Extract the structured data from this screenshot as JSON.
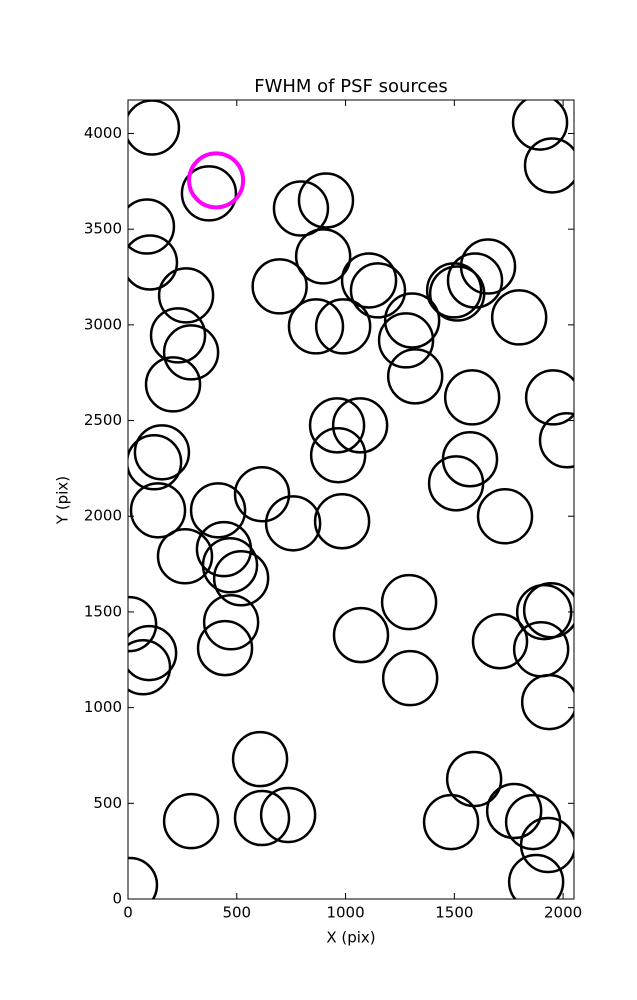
{
  "chart_data": {
    "type": "scatter",
    "title": "FWHM of PSF sources",
    "x_label": "X (pix)",
    "y_label": "Y (pix)",
    "xlim": [
      0,
      2050
    ],
    "ylim": [
      0,
      4175
    ],
    "xticks": [
      0,
      500,
      1000,
      1500,
      2000
    ],
    "yticks": [
      0,
      500,
      1000,
      1500,
      2000,
      2500,
      3000,
      3500,
      4000
    ],
    "series": [
      {
        "color": "#000000",
        "x": [
          110,
          1894,
          1949,
          372,
          87,
          101,
          795,
          910,
          897,
          697,
          267,
          230,
          290,
          207,
          864,
          989,
          1108,
          1149,
          1306,
          1278,
          1320,
          1499,
          1513,
          1595,
          1655,
          1798,
          1582,
          1954,
          2018,
          961,
          1067,
          966,
          156,
          120,
          1572,
          1508,
          1733,
          138,
          414,
          616,
          759,
          984,
          262,
          441,
          469,
          520,
          474,
          446,
          1292,
          1071,
          1297,
          1710,
          1913,
          1945,
          1899,
          1936,
          5,
          97,
          69,
          607,
          616,
          736,
          290,
          1591,
          1775,
          1485,
          1862,
          1931,
          1876,
          9
        ],
        "values": [
          4031,
          4057,
          3833,
          3687,
          3514,
          3326,
          3608,
          3650,
          3358,
          3201,
          3154,
          2945,
          2856,
          2689,
          2992,
          2992,
          3232,
          3180,
          3023,
          2919,
          2731,
          3180,
          3164,
          3232,
          3305,
          3039,
          2621,
          2621,
          2397,
          2475,
          2475,
          2319,
          2334,
          2282,
          2298,
          2172,
          2000,
          2031,
          2031,
          2115,
          1963,
          1974,
          1791,
          1828,
          1744,
          1676,
          1446,
          1311,
          1551,
          1379,
          1154,
          1347,
          1499,
          1509,
          1305,
          1029,
          1436,
          1285,
          1211,
          731,
          423,
          439,
          407,
          627,
          460,
          402,
          402,
          282,
          89,
          73
        ]
      },
      {
        "color": "#ff00ff",
        "x": [
          405
        ],
        "values": [
          3755
        ]
      }
    ]
  }
}
